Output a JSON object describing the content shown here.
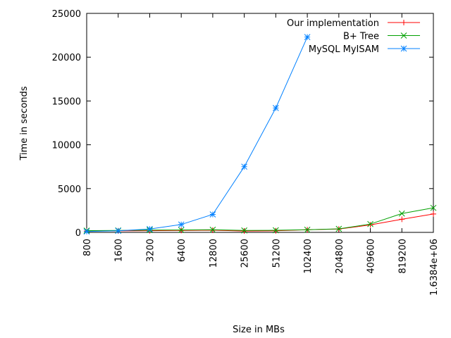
{
  "chart_data": {
    "type": "line",
    "title": "",
    "xlabel": "Size in MBs",
    "ylabel": "Time in seconds",
    "categories": [
      "800",
      "1600",
      "3200",
      "6400",
      "12800",
      "25600",
      "51200",
      "102400",
      "204800",
      "409600",
      "819200",
      "1.6384e+06"
    ],
    "ylim": [
      0,
      25000
    ],
    "yticks": [
      "0",
      "5000",
      "10000",
      "15000",
      "20000",
      "25000"
    ],
    "legend_position": "top-right",
    "grid": false,
    "series": [
      {
        "name": "Our implementation",
        "color": "#ff0000",
        "marker": "plus",
        "values": [
          150,
          170,
          190,
          220,
          250,
          150,
          180,
          300,
          380,
          850,
          1500,
          2100
        ]
      },
      {
        "name": "B+ Tree",
        "color": "#00a000",
        "marker": "cross",
        "values": [
          200,
          220,
          260,
          270,
          300,
          220,
          240,
          300,
          400,
          950,
          2150,
          2800
        ]
      },
      {
        "name": "MySQL MyISAM",
        "color": "#0080ff",
        "marker": "star",
        "values": [
          100,
          180,
          380,
          900,
          2050,
          7500,
          14200,
          22300,
          null,
          null,
          null,
          null
        ]
      }
    ]
  }
}
